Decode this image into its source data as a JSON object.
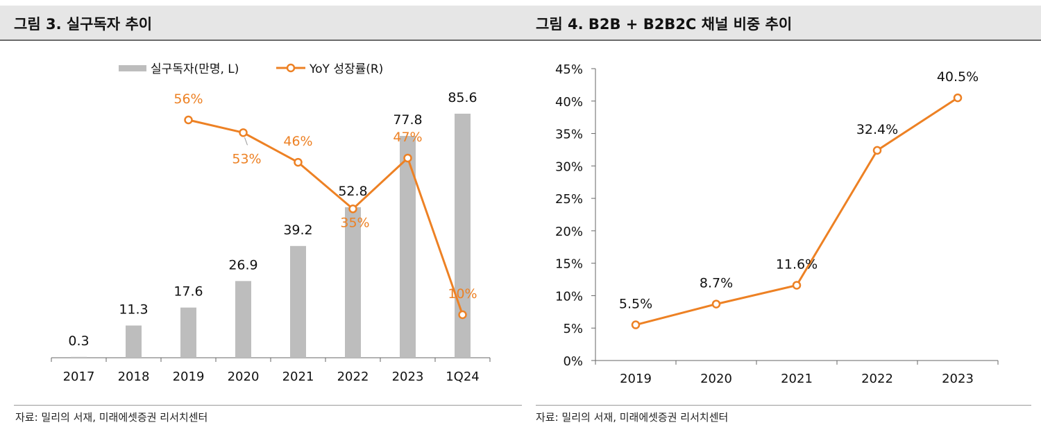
{
  "colors": {
    "bar": "#bdbdbd",
    "line": "#ed8124",
    "title_bg": "#e6e6e6"
  },
  "left": {
    "title": "그림 3. 실구독자 추이",
    "source": "자료: 밀리의 서재, 미래에셋증권 리서치센터",
    "legend": {
      "bar_label": "실구독자(만명, L)",
      "line_label": "YoY 성장률(R)"
    }
  },
  "right": {
    "title": "그림 4. B2B + B2B2C 채널 비중 추이",
    "source": "자료: 밀리의 서재, 미래에셋증권 리서치센터"
  },
  "chart_data": [
    {
      "type": "bar+line",
      "title": "그림 3. 실구독자 추이",
      "categories": [
        "2017",
        "2018",
        "2019",
        "2020",
        "2021",
        "2022",
        "2023",
        "1Q24"
      ],
      "series": [
        {
          "name": "실구독자(만명, L)",
          "type": "bar",
          "axis": "left",
          "values": [
            0.3,
            11.3,
            17.6,
            26.9,
            39.2,
            52.8,
            77.8,
            85.6
          ],
          "labels": [
            "0.3",
            "11.3",
            "17.6",
            "26.9",
            "39.2",
            "52.8",
            "77.8",
            "85.6"
          ]
        },
        {
          "name": "YoY 성장률(R)",
          "type": "line",
          "axis": "right",
          "values": [
            null,
            null,
            56,
            53,
            46,
            35,
            47,
            10
          ],
          "labels": [
            "",
            "",
            "56%",
            "53%",
            "46%",
            "35%",
            "47%",
            "10%"
          ]
        }
      ],
      "ylim_left": [
        0,
        90
      ],
      "ylim_right": [
        0,
        70
      ],
      "legend_position": "top"
    },
    {
      "type": "line",
      "title": "그림 4. B2B + B2B2C 채널 비중 추이",
      "categories": [
        "2019",
        "2020",
        "2021",
        "2022",
        "2023"
      ],
      "series": [
        {
          "name": "B2B + B2B2C 채널 비중",
          "values": [
            5.5,
            8.7,
            11.6,
            32.4,
            40.5
          ],
          "labels": [
            "5.5%",
            "8.7%",
            "11.6%",
            "32.4%",
            "40.5%"
          ]
        }
      ],
      "ylim": [
        0,
        45
      ],
      "yticks": [
        0,
        5,
        10,
        15,
        20,
        25,
        30,
        35,
        40,
        45
      ],
      "ytick_labels": [
        "0%",
        "5%",
        "10%",
        "15%",
        "20%",
        "25%",
        "30%",
        "35%",
        "40%",
        "45%"
      ]
    }
  ]
}
